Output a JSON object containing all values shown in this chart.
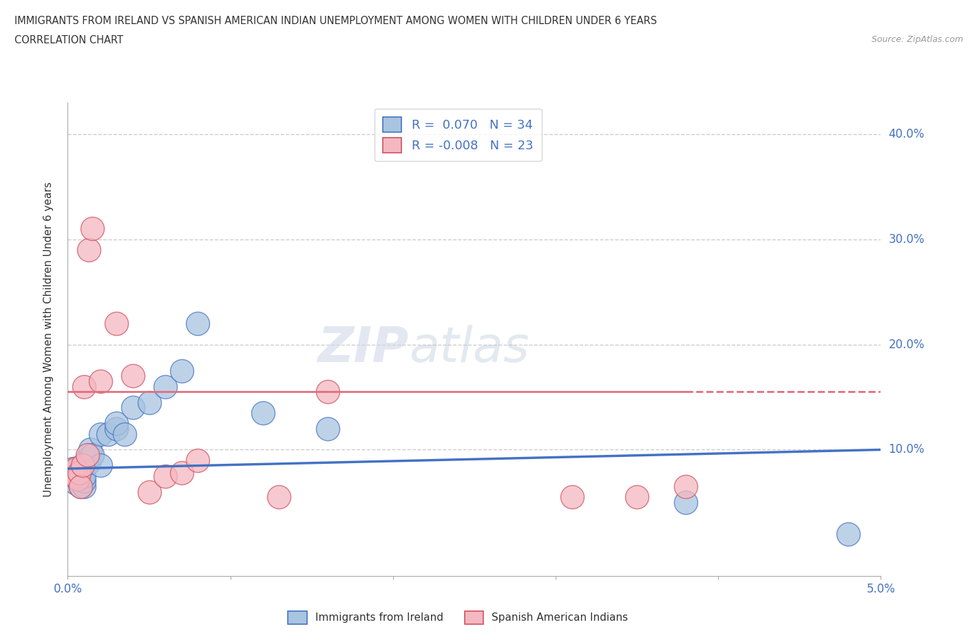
{
  "title_line1": "IMMIGRANTS FROM IRELAND VS SPANISH AMERICAN INDIAN UNEMPLOYMENT AMONG WOMEN WITH CHILDREN UNDER 6 YEARS",
  "title_line2": "CORRELATION CHART",
  "source": "Source: ZipAtlas.com",
  "ylabel": "Unemployment Among Women with Children Under 6 years",
  "xlim": [
    0.0,
    0.05
  ],
  "ylim": [
    -0.02,
    0.43
  ],
  "yticks": [
    0.1,
    0.2,
    0.3,
    0.4
  ],
  "ytick_labels_right": [
    "10.0%",
    "20.0%",
    "30.0%",
    "40.0%"
  ],
  "xtick_positions": [
    0.0,
    0.01,
    0.02,
    0.03,
    0.04,
    0.05
  ],
  "xtick_labels": [
    "0.0%",
    "",
    "",
    "",
    "",
    "5.0%"
  ],
  "blue_color": "#a8c4e0",
  "blue_edge_color": "#4472c4",
  "pink_color": "#f4b8c1",
  "pink_edge_color": "#d05060",
  "pink_line_color": "#e07080",
  "blue_line_color": "#4472c4",
  "R_blue": 0.07,
  "N_blue": 34,
  "R_pink": -0.008,
  "N_pink": 23,
  "legend_label_blue": "Immigrants from Ireland",
  "legend_label_pink": "Spanish American Indians",
  "watermark_zip": "ZIP",
  "watermark_atlas": "atlas",
  "background_color": "#ffffff",
  "grid_color": "#cccccc",
  "blue_scatter_x": [
    0.0003,
    0.0004,
    0.0005,
    0.0005,
    0.0006,
    0.0007,
    0.0007,
    0.0008,
    0.0008,
    0.0008,
    0.0009,
    0.0009,
    0.001,
    0.001,
    0.001,
    0.0012,
    0.0013,
    0.0014,
    0.0015,
    0.002,
    0.002,
    0.0025,
    0.003,
    0.003,
    0.0035,
    0.004,
    0.005,
    0.006,
    0.007,
    0.008,
    0.012,
    0.016,
    0.038,
    0.048
  ],
  "blue_scatter_y": [
    0.082,
    0.075,
    0.068,
    0.08,
    0.072,
    0.078,
    0.083,
    0.076,
    0.08,
    0.065,
    0.072,
    0.078,
    0.065,
    0.07,
    0.075,
    0.092,
    0.088,
    0.1,
    0.095,
    0.085,
    0.115,
    0.115,
    0.12,
    0.125,
    0.115,
    0.14,
    0.145,
    0.16,
    0.175,
    0.22,
    0.135,
    0.12,
    0.05,
    0.02
  ],
  "pink_scatter_x": [
    0.0003,
    0.0004,
    0.0005,
    0.0006,
    0.0007,
    0.0008,
    0.0009,
    0.001,
    0.0012,
    0.0013,
    0.0015,
    0.002,
    0.003,
    0.004,
    0.005,
    0.006,
    0.007,
    0.008,
    0.013,
    0.016,
    0.031,
    0.035,
    0.038
  ],
  "pink_scatter_y": [
    0.08,
    0.075,
    0.082,
    0.072,
    0.078,
    0.065,
    0.085,
    0.16,
    0.095,
    0.29,
    0.31,
    0.165,
    0.22,
    0.17,
    0.06,
    0.075,
    0.078,
    0.09,
    0.055,
    0.155,
    0.055,
    0.055,
    0.065
  ]
}
